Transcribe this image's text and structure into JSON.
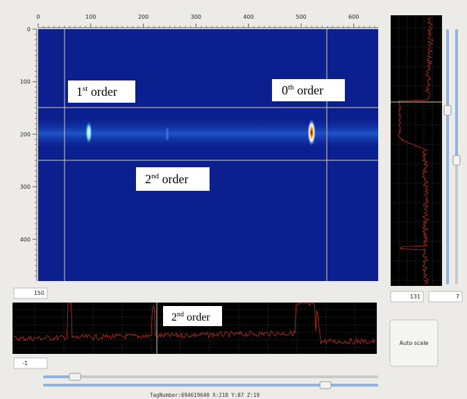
{
  "image_view": {
    "x_ticks": [
      0,
      100,
      200,
      300,
      400,
      500,
      600
    ],
    "y_ticks": [
      0,
      100,
      200,
      300,
      400
    ],
    "annotations": [
      {
        "base": "1",
        "sup": "st",
        "text": " order"
      },
      {
        "base": "0",
        "sup": "th",
        "text": " order"
      },
      {
        "base": "2",
        "sup": "nd",
        "text": " order"
      }
    ]
  },
  "profile_annotation": {
    "base": "2",
    "sup": "nd",
    "text": " order"
  },
  "inputs": {
    "row": "150",
    "column": "131",
    "range": "7",
    "offset": "-1"
  },
  "button": "Auto scale",
  "status": "TagNumber:694619640  X:218 Y:87 Z:19"
}
